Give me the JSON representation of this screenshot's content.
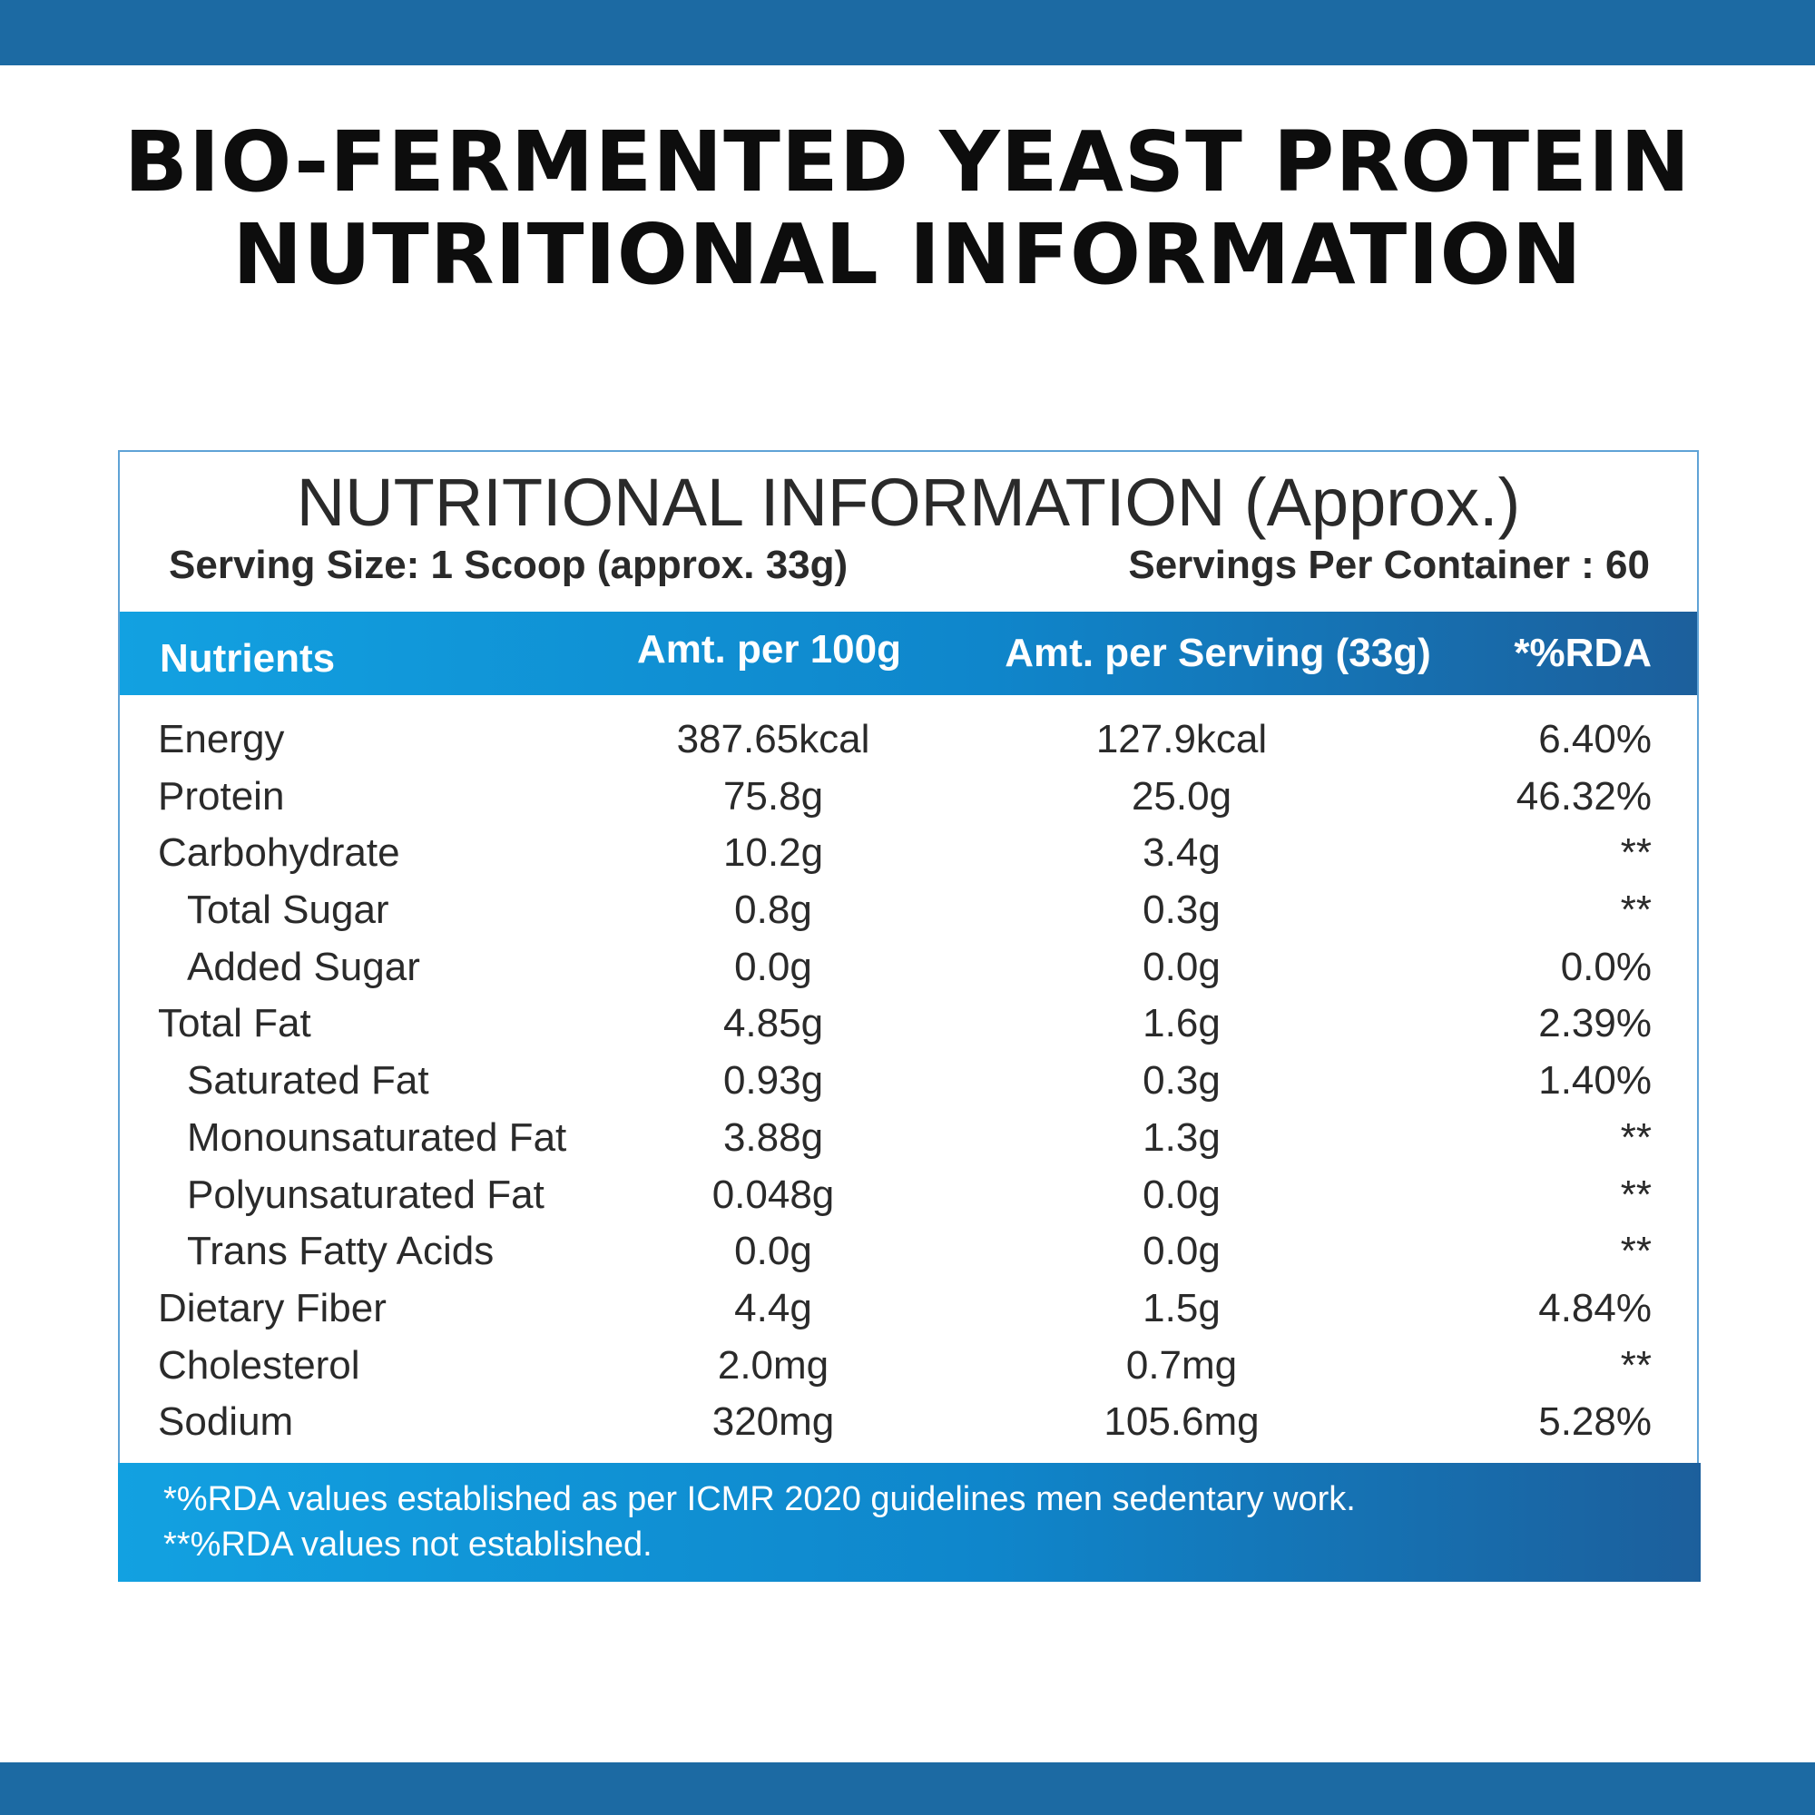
{
  "page": {
    "title_line1": "BIO-FERMENTED YEAST PROTEIN",
    "title_line2": "NUTRITIONAL INFORMATION",
    "colors": {
      "bar": "#1c6aa3",
      "accent_light": "#12a1e1",
      "accent_dark": "#1c5f9c",
      "border": "#5fa3d6"
    }
  },
  "panel": {
    "title": "NUTRITIONAL INFORMATION (Approx.)",
    "serving_size": "Serving Size: 1 Scoop (approx. 33g)",
    "servings_per_container": "Servings  Per Container : 60"
  },
  "table": {
    "headers": {
      "nutrients": "Nutrients",
      "per_100g": "Amt. per 100g",
      "per_serving": "Amt. per Serving (33g)",
      "rda": "*%RDA"
    },
    "rows": [
      {
        "name": "Energy",
        "per_100g": "387.65kcal",
        "per_serving": "127.9kcal",
        "rda": "6.40%",
        "indent": false
      },
      {
        "name": "Protein",
        "per_100g": "75.8g",
        "per_serving": "25.0g",
        "rda": "46.32%",
        "indent": false
      },
      {
        "name": "Carbohydrate",
        "per_100g": "10.2g",
        "per_serving": "3.4g",
        "rda": "**",
        "indent": false
      },
      {
        "name": "Total Sugar",
        "per_100g": "0.8g",
        "per_serving": "0.3g",
        "rda": "**",
        "indent": true
      },
      {
        "name": "Added Sugar",
        "per_100g": "0.0g",
        "per_serving": "0.0g",
        "rda": "0.0%",
        "indent": true
      },
      {
        "name": "Total Fat",
        "per_100g": "4.85g",
        "per_serving": "1.6g",
        "rda": "2.39%",
        "indent": false
      },
      {
        "name": "Saturated Fat",
        "per_100g": "0.93g",
        "per_serving": "0.3g",
        "rda": "1.40%",
        "indent": true
      },
      {
        "name": "Monounsaturated Fat",
        "per_100g": "3.88g",
        "per_serving": "1.3g",
        "rda": "**",
        "indent": true
      },
      {
        "name": "Polyunsaturated Fat",
        "per_100g": "0.048g",
        "per_serving": "0.0g",
        "rda": "**",
        "indent": true
      },
      {
        "name": "Trans Fatty Acids",
        "per_100g": "0.0g",
        "per_serving": "0.0g",
        "rda": "**",
        "indent": true
      },
      {
        "name": "Dietary Fiber",
        "per_100g": "4.4g",
        "per_serving": "1.5g",
        "rda": "4.84%",
        "indent": false
      },
      {
        "name": "Cholesterol",
        "per_100g": "2.0mg",
        "per_serving": "0.7mg",
        "rda": "**",
        "indent": false
      },
      {
        "name": "Sodium",
        "per_100g": "320mg",
        "per_serving": "105.6mg",
        "rda": "5.28%",
        "indent": false
      }
    ]
  },
  "footnotes": {
    "line1": "*%RDA values established as per ICMR 2020 guidelines men sedentary work.",
    "line2": "**%RDA values not established."
  }
}
